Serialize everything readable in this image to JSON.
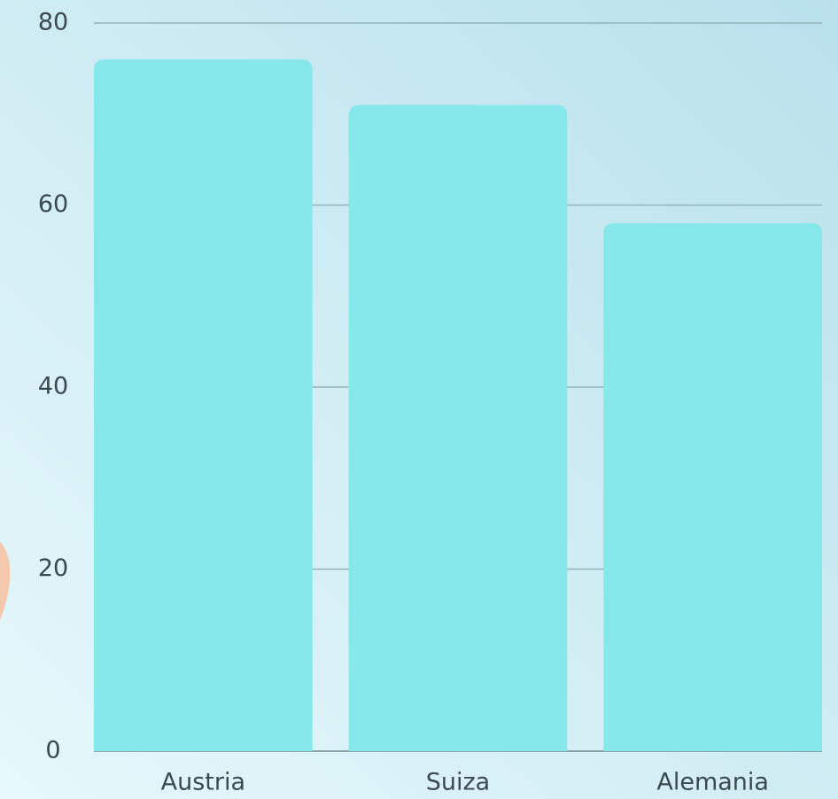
{
  "chart_data": {
    "type": "bar",
    "categories": [
      "Austria",
      "Suiza",
      "Alemania"
    ],
    "values": [
      76,
      71,
      58
    ],
    "color": "#86e8ea",
    "ylim": [
      0,
      80
    ],
    "yticks": [
      0,
      20,
      40,
      60,
      80
    ],
    "grid": true
  }
}
